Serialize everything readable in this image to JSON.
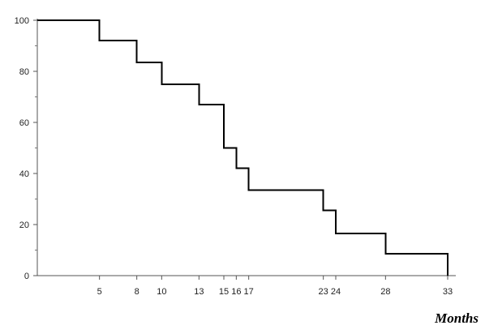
{
  "chart_data": {
    "type": "line",
    "step": true,
    "title": "",
    "xlabel": "Months",
    "ylabel": "",
    "xlim": [
      0,
      33
    ],
    "ylim": [
      0,
      100
    ],
    "x_ticks": [
      5,
      8,
      10,
      13,
      15,
      16,
      17,
      23,
      24,
      28,
      33
    ],
    "x_tick_labels": [
      "5",
      "8",
      "10",
      "13",
      "15",
      "16",
      "17",
      "23",
      "24",
      "28",
      "33"
    ],
    "y_ticks": [
      0,
      20,
      40,
      60,
      80,
      100
    ],
    "y_tick_labels": [
      "0",
      "20",
      "40",
      "60",
      "80",
      "100"
    ],
    "grid": false,
    "series": [
      {
        "x": [
          0,
          5,
          8,
          10,
          13,
          15,
          16,
          17,
          23,
          24,
          28,
          33
        ],
        "y": [
          100,
          92,
          83.5,
          75,
          67,
          50,
          42,
          33.5,
          25.5,
          16.5,
          8.5,
          0
        ],
        "color": "#000000"
      }
    ]
  }
}
